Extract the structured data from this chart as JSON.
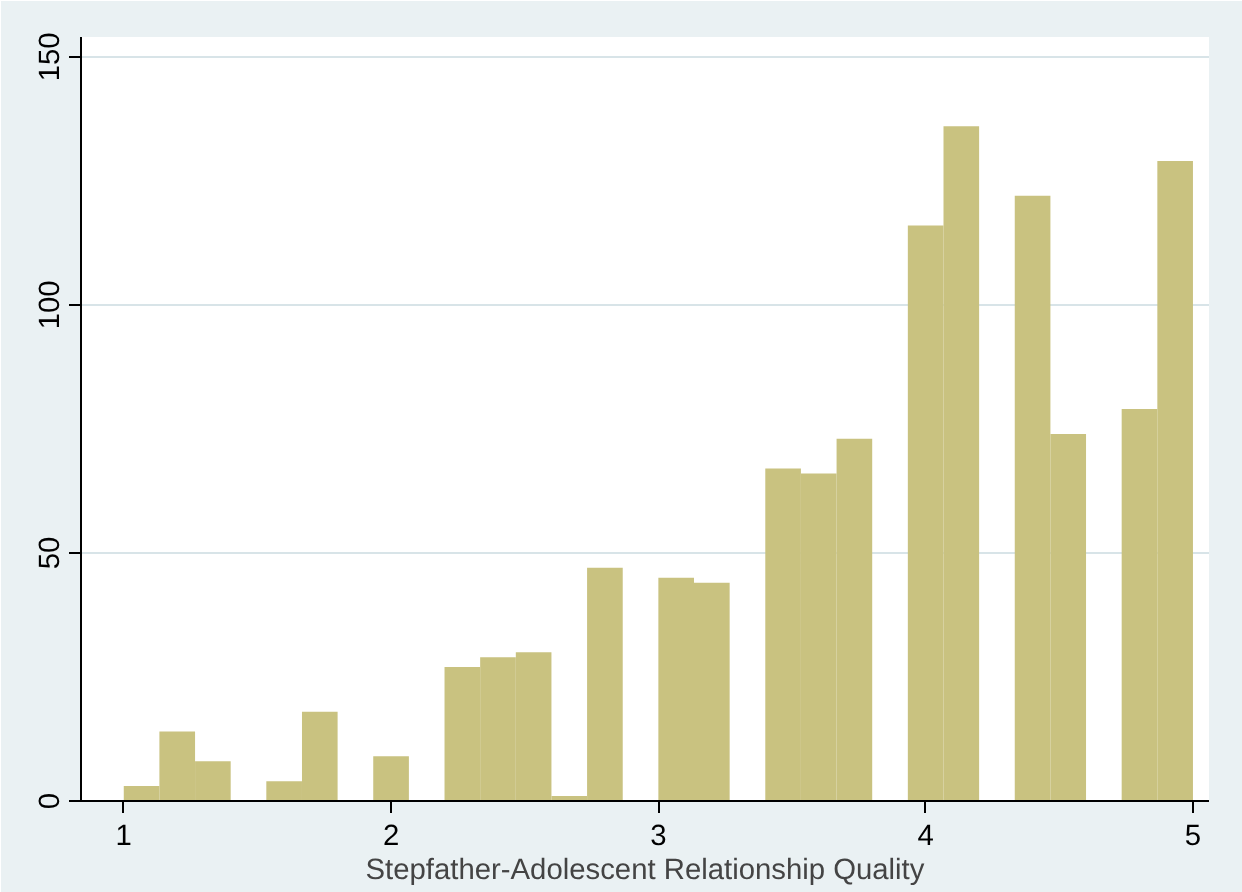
{
  "chart_data": {
    "type": "histogram",
    "xlabel": "Stepfather-Adolescent Relationship Quality",
    "bins": [
      1,
      1.1333,
      1.2667,
      1.4,
      1.5333,
      1.6667,
      1.8,
      1.9333,
      2.0667,
      2.2,
      2.3333,
      2.4667,
      2.6,
      2.7333,
      2.8667,
      3,
      3.1333,
      3.2667,
      3.4,
      3.5333,
      3.6667,
      3.8,
      3.9333,
      4.0667,
      4.2,
      4.3333,
      4.4667,
      4.6,
      4.7333,
      4.8667,
      5
    ],
    "values": [
      3,
      14,
      8,
      0,
      4,
      18,
      0,
      9,
      0,
      27,
      29,
      30,
      1,
      47,
      0,
      45,
      44,
      0,
      67,
      66,
      73,
      0,
      116,
      136,
      0,
      122,
      74,
      0,
      79,
      129
    ],
    "color": "#c9c280",
    "xlim": [
      0.84,
      5.06
    ],
    "ylim": [
      0,
      154
    ],
    "xticks": [
      1,
      2,
      3,
      4,
      5
    ],
    "yticks": [
      0,
      50,
      100,
      150
    ],
    "grid": "y"
  }
}
